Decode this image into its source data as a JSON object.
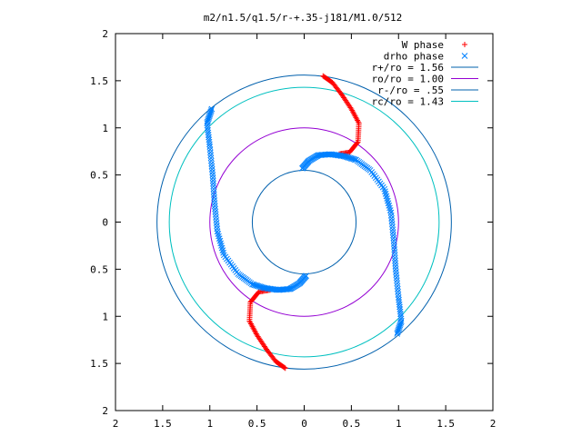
{
  "chart_data": {
    "type": "scatter",
    "title": "m2/n1.5/q1.5/r-+.35-j181/M1.0/512",
    "xlabel": "",
    "ylabel": "",
    "xlim": [
      -2,
      2
    ],
    "ylim": [
      -2,
      2
    ],
    "x_ticks": [
      -2,
      -1.5,
      -1,
      -0.5,
      0,
      0.5,
      1,
      1.5,
      2
    ],
    "y_ticks": [
      -2,
      -1.5,
      -1,
      -0.5,
      0,
      0.5,
      1,
      1.5,
      2
    ],
    "x_tick_labels": [
      "2",
      "1.5",
      "1",
      "0.5",
      "0",
      "0.5",
      "1",
      "1.5",
      "2"
    ],
    "y_tick_labels": [
      "2",
      "1.5",
      "1",
      "0.5",
      "0",
      "0.5",
      "1",
      "1.5",
      "2"
    ],
    "grid": false,
    "legend_position": "top-right",
    "series": [
      {
        "name": "W phase",
        "marker": "plus",
        "color": "#ff0000",
        "points": [
          [
            0.2,
            1.55
          ],
          [
            0.3,
            1.48
          ],
          [
            0.4,
            1.35
          ],
          [
            0.5,
            1.2
          ],
          [
            0.58,
            1.05
          ],
          [
            0.57,
            0.85
          ],
          [
            0.48,
            0.74
          ],
          [
            0.36,
            0.72
          ],
          [
            -0.2,
            -1.55
          ],
          [
            -0.3,
            -1.48
          ],
          [
            -0.4,
            -1.35
          ],
          [
            -0.5,
            -1.2
          ],
          [
            -0.58,
            -1.05
          ],
          [
            -0.57,
            -0.85
          ],
          [
            -0.48,
            -0.74
          ],
          [
            -0.36,
            -0.72
          ]
        ]
      },
      {
        "name": "drho phase",
        "marker": "cross",
        "color": "#0080ff",
        "points": [
          [
            -0.02,
            0.57
          ],
          [
            0.05,
            0.65
          ],
          [
            0.15,
            0.71
          ],
          [
            0.28,
            0.72
          ],
          [
            0.42,
            0.7
          ],
          [
            0.55,
            0.66
          ],
          [
            0.7,
            0.55
          ],
          [
            0.85,
            0.35
          ],
          [
            0.92,
            0.1
          ],
          [
            0.95,
            -0.2
          ],
          [
            0.97,
            -0.5
          ],
          [
            1.0,
            -0.8
          ],
          [
            1.03,
            -1.05
          ],
          [
            0.98,
            -1.2
          ],
          [
            0.02,
            -0.57
          ],
          [
            -0.05,
            -0.65
          ],
          [
            -0.15,
            -0.71
          ],
          [
            -0.28,
            -0.72
          ],
          [
            -0.42,
            -0.7
          ],
          [
            -0.55,
            -0.66
          ],
          [
            -0.7,
            -0.55
          ],
          [
            -0.85,
            -0.35
          ],
          [
            -0.92,
            -0.1
          ],
          [
            -0.95,
            0.2
          ],
          [
            -0.97,
            0.5
          ],
          [
            -1.0,
            0.8
          ],
          [
            -1.03,
            1.05
          ],
          [
            -0.98,
            1.2
          ]
        ]
      }
    ],
    "circles": [
      {
        "name": "r+/ro = 1.56",
        "radius": 1.56,
        "color": "#0060ad"
      },
      {
        "name": "ro/ro = 1.00",
        "radius": 1.0,
        "color": "#9400d3"
      },
      {
        "name": "r-/ro = .55",
        "radius": 0.55,
        "color": "#0060ad"
      },
      {
        "name": "rc/ro = 1.43",
        "radius": 1.43,
        "color": "#00c0c0"
      }
    ]
  }
}
